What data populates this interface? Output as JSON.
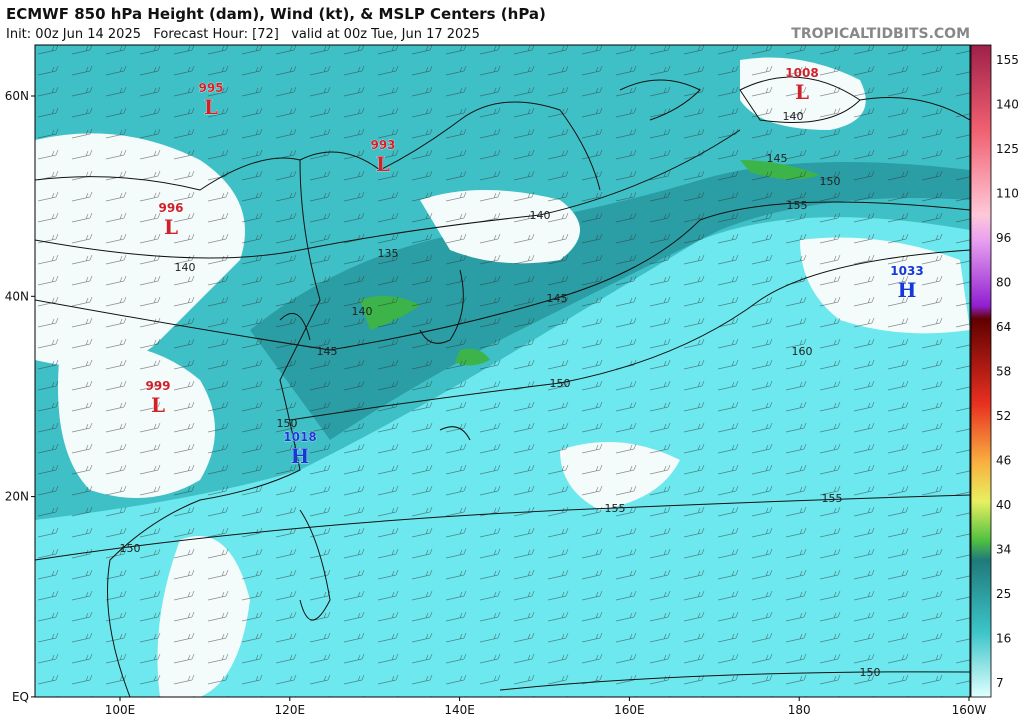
{
  "header": {
    "title": "ECMWF 850 hPa Height (dam), Wind (kt), & MSLP Centers (hPa)",
    "subtitle": "Init: 00z Jun 14 2025   Forecast Hour: [72]   valid at 00z Tue, Jun 17 2025",
    "watermark": "TROPICALTIDBITS.COM"
  },
  "centers": [
    {
      "value": 1008,
      "symbol": "L"
    },
    {
      "value": 995,
      "symbol": "L"
    },
    {
      "value": 993,
      "symbol": "L"
    },
    {
      "value": 996,
      "symbol": "L"
    },
    {
      "value": 999,
      "symbol": "L"
    },
    {
      "value": 1033,
      "symbol": "H"
    },
    {
      "value": 1018,
      "symbol": "H"
    }
  ],
  "contours": [
    140,
    145,
    150,
    155,
    140,
    135,
    140,
    145,
    140,
    145,
    150,
    160,
    150,
    155,
    155,
    150,
    150
  ],
  "latitudes": [
    "60N",
    "40N",
    "20N",
    "EQ"
  ],
  "longitudes": [
    "100E",
    "120E",
    "140E",
    "160E",
    "180",
    "160W"
  ],
  "colorbar": [
    155,
    140,
    125,
    110,
    96,
    80,
    64,
    58,
    52,
    46,
    40,
    34,
    25,
    16,
    7
  ]
}
